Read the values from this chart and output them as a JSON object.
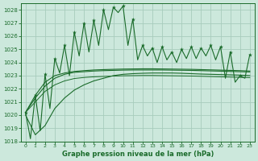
{
  "xlabel": "Graphe pression niveau de la mer (hPa)",
  "xlim_min": -0.5,
  "xlim_max": 23.5,
  "ylim_min": 1018,
  "ylim_max": 1028.5,
  "yticks": [
    1018,
    1019,
    1020,
    1021,
    1022,
    1023,
    1024,
    1025,
    1026,
    1027,
    1028
  ],
  "xticks": [
    0,
    1,
    2,
    3,
    4,
    5,
    6,
    7,
    8,
    9,
    10,
    11,
    12,
    13,
    14,
    15,
    16,
    17,
    18,
    19,
    20,
    21,
    22,
    23
  ],
  "bg_color": "#cce8dc",
  "grid_color": "#a8ccbc",
  "line_color": "#1a6b2a",
  "hours": [
    0,
    1,
    2,
    3,
    4,
    5,
    6,
    7,
    8,
    9,
    10,
    11,
    12,
    13,
    14,
    15,
    16,
    17,
    18,
    19,
    20,
    21,
    22,
    23
  ],
  "pressure_peaks": [
    1020.2,
    1021.5,
    1023.1,
    1024.3,
    1025.3,
    1026.3,
    1027.0,
    1027.2,
    1028.0,
    1028.2,
    1028.3,
    1027.3,
    1025.3,
    1025.1,
    1025.2,
    1024.8,
    1025.0,
    1025.2,
    1025.1,
    1025.3,
    1025.2,
    1024.8,
    1023.0,
    1024.6
  ],
  "pressure_valleys": [
    1020.2,
    1018.2,
    1018.8,
    1020.5,
    1023.2,
    1023.0,
    1024.5,
    1024.8,
    1025.3,
    1026.5,
    1027.8,
    1025.3,
    1024.2,
    1024.5,
    1024.0,
    1024.2,
    1024.0,
    1024.3,
    1024.3,
    1024.5,
    1024.2,
    1022.8,
    1022.5,
    1022.8
  ],
  "trend_line1": [
    1020.2,
    1021.3,
    1022.2,
    1022.8,
    1023.1,
    1023.25,
    1023.3,
    1023.35,
    1023.38,
    1023.4,
    1023.42,
    1023.43,
    1023.43,
    1023.43,
    1023.43,
    1023.42,
    1023.41,
    1023.4,
    1023.38,
    1023.36,
    1023.34,
    1023.32,
    1023.3,
    1023.28
  ],
  "trend_line2": [
    1020.2,
    1021.5,
    1022.5,
    1023.0,
    1023.2,
    1023.32,
    1023.38,
    1023.43,
    1023.46,
    1023.48,
    1023.5,
    1023.51,
    1023.52,
    1023.52,
    1023.51,
    1023.5,
    1023.49,
    1023.48,
    1023.46,
    1023.44,
    1023.42,
    1023.4,
    1023.38,
    1023.35
  ],
  "trend_line3": [
    1020.0,
    1018.5,
    1019.2,
    1020.5,
    1021.3,
    1021.9,
    1022.3,
    1022.6,
    1022.8,
    1023.0,
    1023.1,
    1023.15,
    1023.18,
    1023.2,
    1023.2,
    1023.2,
    1023.18,
    1023.15,
    1023.12,
    1023.1,
    1023.08,
    1023.06,
    1023.04,
    1023.0
  ],
  "trend_line4": [
    1020.2,
    1021.0,
    1021.8,
    1022.3,
    1022.6,
    1022.78,
    1022.86,
    1022.91,
    1022.94,
    1022.97,
    1022.99,
    1023.0,
    1023.01,
    1023.01,
    1023.0,
    1022.99,
    1022.98,
    1022.97,
    1022.95,
    1022.93,
    1022.91,
    1022.89,
    1022.87,
    1022.85
  ]
}
